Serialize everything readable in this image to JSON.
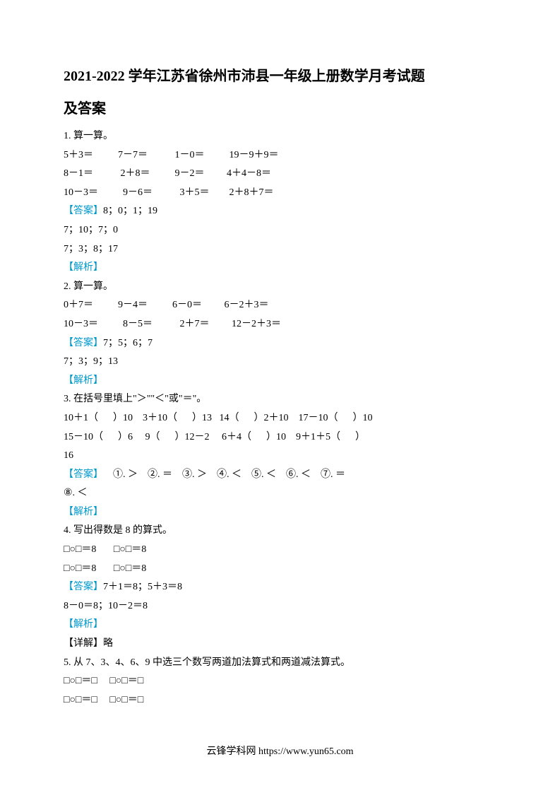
{
  "title": "2021-2022 学年江苏省徐州市沛县一年级上册数学月考试题",
  "subtitle": "及答案",
  "q1": {
    "heading": "1. 算一算。",
    "row1": "5＋3＝          7－7＝           1－0＝          19－9＋9＝",
    "row2": "8－1＝           2＋8＝          9－2＝         4＋4－8＝",
    "row3": "10－3＝          9－6＝           3＋5＝        2＋8＋7＝",
    "answer_label": "【答案】",
    "answer1": "8；0；1；19",
    "answer2": "7；10；7；0",
    "answer3": "7；3；8；17",
    "analysis_label": "【解析】"
  },
  "q2": {
    "heading": "2. 算一算。",
    "row1": "0＋7＝          9－4＝          6－0＝         6－2＋3＝",
    "row2": "10－3＝          8－5＝           2＋7＝         12－2＋3＝",
    "answer_label": "【答案】",
    "answer1": "7；5；6；7",
    "answer2": "7；3；9；13",
    "analysis_label": "【解析】"
  },
  "q3": {
    "heading": "3. 在括号里填上\"＞\"\"＜\"或\"＝\"。",
    "row1": "10＋1（      ）10    3＋10（      ）13   14（      ）2＋10    17－10（      ）10",
    "row2": "15－10（      ）6     9（      ）12－2     6＋4（      ）10    9＋1＋5（      ）",
    "row3": "16",
    "answer_label": "【答案】",
    "answer1": "    ①. ＞    ②. ＝    ③. ＞    ④. ＜    ⑤. ＜    ⑥. ＜    ⑦. ＝    ",
    "answer2": "⑧. ＜",
    "analysis_label": "【解析】"
  },
  "q4": {
    "heading": "4. 写出得数是 8 的算式。",
    "row1": "□○□＝8       □○□＝8",
    "row2": "□○□＝8       □○□＝8",
    "answer_label": "【答案】",
    "answer1": "7＋1＝8；5＋3＝8",
    "answer2": "8－0＝8；10－2＝8",
    "analysis_label": "【解析】",
    "detail_label": "【详解】",
    "detail": "略"
  },
  "q5": {
    "heading": "5. 从 7、3、4、6、9 中选三个数写两道加法算式和两道减法算式。",
    "row1": "□○□＝□     □○□＝□",
    "row2": "□○□＝□     □○□＝□"
  },
  "footer": "云锋学科网 https://www.yun65.com"
}
